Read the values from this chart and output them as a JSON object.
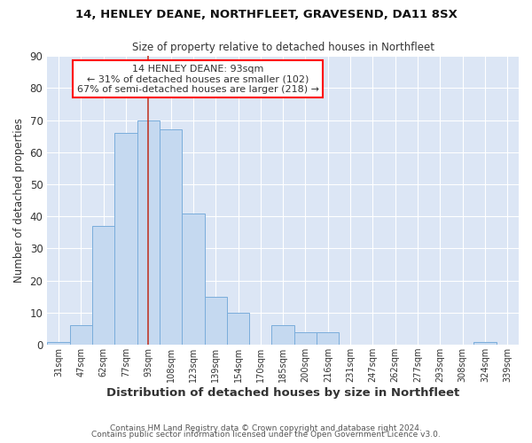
{
  "title": "14, HENLEY DEANE, NORTHFLEET, GRAVESEND, DA11 8SX",
  "subtitle": "Size of property relative to detached houses in Northfleet",
  "xlabel": "Distribution of detached houses by size in Northfleet",
  "ylabel": "Number of detached properties",
  "bar_color": "#c5d9f0",
  "bar_edge_color": "#7aaddb",
  "plot_bg_color": "#dce6f5",
  "fig_bg_color": "#ffffff",
  "grid_color": "#ffffff",
  "vline_color": "#c0392b",
  "tick_labels": [
    "31sqm",
    "47sqm",
    "62sqm",
    "77sqm",
    "93sqm",
    "108sqm",
    "123sqm",
    "139sqm",
    "154sqm",
    "170sqm",
    "185sqm",
    "200sqm",
    "216sqm",
    "231sqm",
    "247sqm",
    "262sqm",
    "277sqm",
    "293sqm",
    "308sqm",
    "324sqm",
    "339sqm"
  ],
  "bar_values": [
    1,
    6,
    37,
    66,
    70,
    67,
    41,
    15,
    10,
    0,
    6,
    4,
    4,
    0,
    0,
    0,
    0,
    0,
    0,
    1,
    0
  ],
  "ylim": [
    0,
    90
  ],
  "yticks": [
    0,
    10,
    20,
    30,
    40,
    50,
    60,
    70,
    80,
    90
  ],
  "property_line_x": 4,
  "annotation_title": "14 HENLEY DEANE: 93sqm",
  "annotation_line1": "← 31% of detached houses are smaller (102)",
  "annotation_line2": "67% of semi-detached houses are larger (218) →",
  "footer_line1": "Contains HM Land Registry data © Crown copyright and database right 2024.",
  "footer_line2": "Contains public sector information licensed under the Open Government Licence v3.0."
}
